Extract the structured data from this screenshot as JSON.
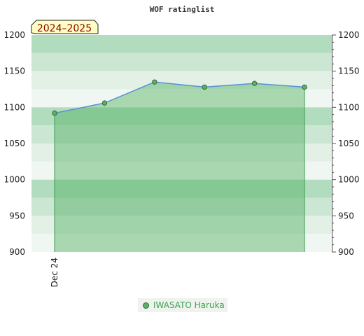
{
  "chart_data": {
    "type": "area",
    "title": "WOF ratinglist",
    "season_label": "2024–2025",
    "x_tick_labels": [
      "Dec 24"
    ],
    "y_ticks": [
      900,
      950,
      1000,
      1050,
      1100,
      1150,
      1200
    ],
    "ylim": [
      900,
      1200
    ],
    "grid": true,
    "legend_position": "bottom-center",
    "series": [
      {
        "name": "IWASATO Haruka",
        "values": [
          1092,
          1106,
          1135,
          1128,
          1133,
          1128
        ]
      }
    ],
    "colors": {
      "area_fill": "#4fb060",
      "line": "#5b8fd6",
      "marker_fill": "#5faf6a",
      "marker_stroke": "#2e6b34",
      "band_dark": "#b2dcbe",
      "band_mid": "#cbe6d3",
      "band_light": "#e2f0e6",
      "band_lightest": "#f0f7f2",
      "season_box": "#ffffc4",
      "season_text": "#8b0000"
    }
  },
  "legend": {
    "label": "IWASATO Haruka"
  }
}
